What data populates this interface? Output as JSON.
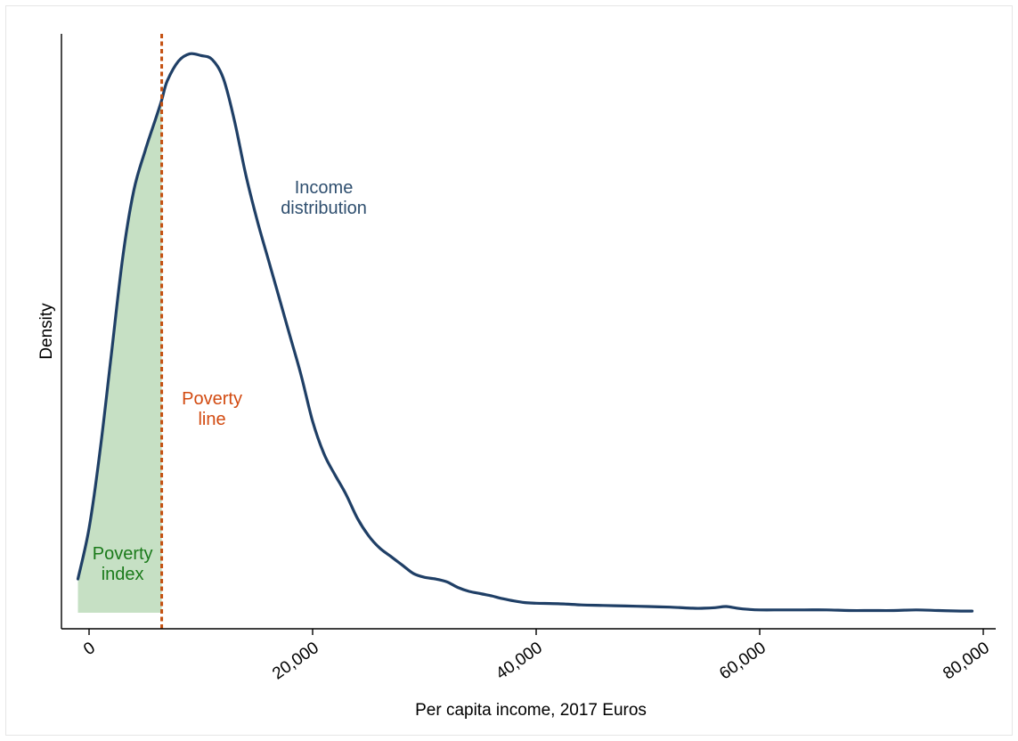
{
  "chart_data": {
    "type": "area",
    "title": "",
    "xlabel": "Per capita income, 2017 Euros",
    "ylabel": "Density",
    "xlim": [
      -2500,
      80000
    ],
    "ylim": [
      0,
      1.0
    ],
    "xticks": [
      0,
      20000,
      40000,
      60000,
      80000
    ],
    "xtick_labels": [
      "0",
      "20,000",
      "40,000",
      "60,000",
      "80,000"
    ],
    "yticks_shown": false,
    "grid": false,
    "poverty_line_x": 6500,
    "series": [
      {
        "x": [
          -1000,
          0,
          1000,
          2000,
          3000,
          4000,
          5000,
          6000,
          6500,
          7000,
          8000,
          9000,
          10000,
          11000,
          12000,
          13000,
          14000,
          15000,
          16000,
          17000,
          18000,
          19000,
          20000,
          21000,
          22000,
          23000,
          24000,
          25000,
          26000,
          27000,
          28000,
          29000,
          30000,
          31000,
          32000,
          33000,
          34000,
          35000,
          36000,
          37000,
          38000,
          39000,
          40000,
          42000,
          44000,
          46000,
          48000,
          50000,
          52000,
          54000,
          55000,
          56000,
          57000,
          58000,
          59000,
          60000,
          62000,
          64000,
          66000,
          68000,
          70000,
          72000,
          74000,
          76000,
          78000,
          79000
        ],
        "y": [
          0.06,
          0.15,
          0.29,
          0.46,
          0.63,
          0.75,
          0.82,
          0.88,
          0.911,
          0.945,
          0.98,
          0.993,
          0.99,
          0.983,
          0.95,
          0.875,
          0.78,
          0.7,
          0.63,
          0.56,
          0.49,
          0.42,
          0.34,
          0.283,
          0.245,
          0.21,
          0.168,
          0.137,
          0.115,
          0.1,
          0.085,
          0.07,
          0.063,
          0.06,
          0.055,
          0.045,
          0.038,
          0.034,
          0.03,
          0.025,
          0.021,
          0.018,
          0.017,
          0.016,
          0.014,
          0.013,
          0.012,
          0.011,
          0.01,
          0.008,
          0.008,
          0.009,
          0.011,
          0.008,
          0.006,
          0.005,
          0.005,
          0.005,
          0.005,
          0.004,
          0.004,
          0.004,
          0.005,
          0.004,
          0.003,
          0.003
        ]
      }
    ],
    "annotations": [
      {
        "id": "income",
        "lines": [
          "Income",
          "distribution"
        ],
        "x": 21000,
        "y": 0.745,
        "color": "#2f4f6f"
      },
      {
        "id": "povline",
        "lines": [
          "Poverty",
          "line"
        ],
        "x": 11000,
        "y": 0.37,
        "color": "#d24a10"
      },
      {
        "id": "povindex",
        "lines": [
          "Poverty",
          "index"
        ],
        "x": 3000,
        "y": 0.095,
        "color": "#1a7a1a"
      }
    ]
  },
  "colors": {
    "curve": "#1f3f66",
    "fill": "#c6e0c4",
    "poverty_line": "#c45010",
    "axis": "#000000"
  }
}
